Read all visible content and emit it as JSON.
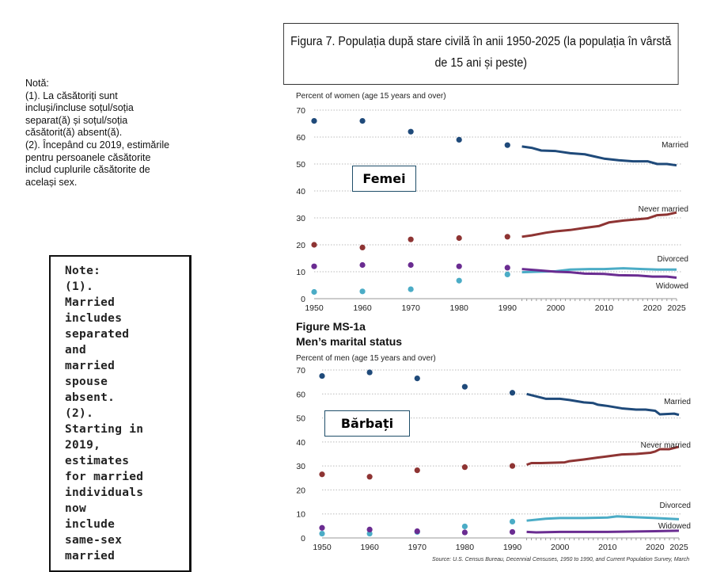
{
  "note_ro": {
    "text": "Notă:\n(1). La  căsătoriți sunt\nincluși/incluse soțul/soția\nseparat(ă) și soțul/soția\ncăsătorit(ă) absent(ă).\n(2). Începând cu 2019, estimările\npentru persoanele căsătorite\ninclud cuplurile căsătorite de\nacelași sex."
  },
  "note_en": {
    "text": "Note:\n(1).\nMarried\nincludes\nseparated\nand\nmarried\nspouse\nabsent.\n(2).\nStarting in\n2019,\nestimates\nfor married\nindividuals\nnow\ninclude\nsame-sex\nmarried"
  },
  "title": "Figura 7. Populația după stare civilă în anii 1950-2025 (la populația în vârstă de 15 ani și peste)",
  "figure_label": {
    "line1": "Figure MS-1a",
    "line2": "Men’s marital status"
  },
  "source": "Source: U.S. Census Bureau, Decennial Censuses, 1950 to 1990, and Current Population Survey, March",
  "colors": {
    "married": "#1f4a7a",
    "never_married": "#8e3433",
    "divorced": "#4bacc6",
    "widowed": "#6a2c91"
  },
  "chart_data": [
    {
      "type": "line",
      "title": "Femei",
      "ylabel": "Percent of women (age 15 years and over)",
      "xlim": [
        1950,
        2025
      ],
      "ylim": [
        0,
        70
      ],
      "yticks": [
        0,
        10,
        20,
        30,
        40,
        50,
        60,
        70
      ],
      "xticks": [
        1950,
        1960,
        1970,
        1980,
        1990,
        2000,
        2010,
        2020,
        2025
      ],
      "grid": true,
      "series": [
        {
          "key": "married",
          "name": "Married",
          "points": [
            [
              1950,
              66
            ],
            [
              1960,
              66
            ],
            [
              1970,
              62
            ],
            [
              1980,
              59
            ],
            [
              1990,
              57
            ]
          ],
          "line": [
            [
              1993,
              56.5
            ],
            [
              1995,
              56
            ],
            [
              1997,
              55
            ],
            [
              2000,
              54.8
            ],
            [
              2003,
              54
            ],
            [
              2006,
              53.6
            ],
            [
              2008,
              52.8
            ],
            [
              2010,
              52
            ],
            [
              2013,
              51.4
            ],
            [
              2016,
              51
            ],
            [
              2019,
              51
            ],
            [
              2021,
              50
            ],
            [
              2023,
              50
            ],
            [
              2025,
              49.5
            ]
          ]
        },
        {
          "key": "never_married",
          "name": "Never married",
          "points": [
            [
              1950,
              20
            ],
            [
              1960,
              19
            ],
            [
              1970,
              22
            ],
            [
              1980,
              22.5
            ],
            [
              1990,
              23
            ]
          ],
          "line": [
            [
              1993,
              23
            ],
            [
              1995,
              23.5
            ],
            [
              1998,
              24.5
            ],
            [
              2000,
              25
            ],
            [
              2003,
              25.5
            ],
            [
              2006,
              26.3
            ],
            [
              2009,
              27
            ],
            [
              2011,
              28.3
            ],
            [
              2014,
              29
            ],
            [
              2017,
              29.5
            ],
            [
              2019,
              29.8
            ],
            [
              2021,
              31
            ],
            [
              2023,
              31.2
            ],
            [
              2025,
              32
            ]
          ]
        },
        {
          "key": "divorced",
          "name": "Divorced",
          "points": [
            [
              1950,
              2.5
            ],
            [
              1960,
              2.7
            ],
            [
              1970,
              3.5
            ],
            [
              1980,
              6.7
            ],
            [
              1990,
              9
            ]
          ],
          "line": [
            [
              1993,
              9.8
            ],
            [
              1996,
              10
            ],
            [
              2000,
              10.2
            ],
            [
              2003,
              10.8
            ],
            [
              2007,
              11
            ],
            [
              2010,
              11
            ],
            [
              2014,
              11.3
            ],
            [
              2018,
              11
            ],
            [
              2021,
              10.8
            ],
            [
              2025,
              10.8
            ]
          ]
        },
        {
          "key": "widowed",
          "name": "Widowed",
          "points": [
            [
              1950,
              12
            ],
            [
              1960,
              12.5
            ],
            [
              1970,
              12.5
            ],
            [
              1980,
              12
            ],
            [
              1990,
              11.5
            ]
          ],
          "line": [
            [
              1993,
              11
            ],
            [
              1996,
              10.6
            ],
            [
              2000,
              10
            ],
            [
              2003,
              9.8
            ],
            [
              2006,
              9.3
            ],
            [
              2010,
              9.2
            ],
            [
              2013,
              8.7
            ],
            [
              2017,
              8.6
            ],
            [
              2020,
              8.2
            ],
            [
              2023,
              8.2
            ],
            [
              2025,
              7.8
            ]
          ]
        }
      ]
    },
    {
      "type": "line",
      "title": "Bărbați",
      "ylabel": "Percent of men (age 15 years and over)",
      "xlim": [
        1950,
        2025
      ],
      "ylim": [
        0,
        70
      ],
      "yticks": [
        0,
        10,
        20,
        30,
        40,
        50,
        60,
        70
      ],
      "xticks": [
        1950,
        1960,
        1970,
        1980,
        1990,
        2000,
        2010,
        2020,
        2025
      ],
      "grid": true,
      "series": [
        {
          "key": "married",
          "name": "Married",
          "points": [
            [
              1950,
              67.5
            ],
            [
              1960,
              69
            ],
            [
              1970,
              66.5
            ],
            [
              1980,
              63
            ],
            [
              1990,
              60.5
            ]
          ],
          "line": [
            [
              1993,
              60
            ],
            [
              1995,
              59
            ],
            [
              1997,
              58
            ],
            [
              2000,
              58
            ],
            [
              2002,
              57.5
            ],
            [
              2005,
              56.5
            ],
            [
              2007,
              56.2
            ],
            [
              2008,
              55.5
            ],
            [
              2010,
              55
            ],
            [
              2013,
              54
            ],
            [
              2016,
              53.5
            ],
            [
              2018,
              53.5
            ],
            [
              2020,
              53
            ],
            [
              2021,
              51.5
            ],
            [
              2024,
              51.8
            ],
            [
              2025,
              51.3
            ]
          ]
        },
        {
          "key": "never_married",
          "name": "Never married",
          "points": [
            [
              1950,
              26.5
            ],
            [
              1960,
              25.5
            ],
            [
              1970,
              28.2
            ],
            [
              1980,
              29.5
            ],
            [
              1990,
              30
            ]
          ],
          "line": [
            [
              1993,
              30.5
            ],
            [
              1994,
              31.2
            ],
            [
              1996,
              31.2
            ],
            [
              2001,
              31.5
            ],
            [
              2002,
              32
            ],
            [
              2005,
              32.7
            ],
            [
              2008,
              33.5
            ],
            [
              2010,
              34
            ],
            [
              2013,
              34.8
            ],
            [
              2016,
              35
            ],
            [
              2019,
              35.5
            ],
            [
              2020,
              36
            ],
            [
              2021,
              37
            ],
            [
              2023,
              37
            ],
            [
              2025,
              38
            ]
          ]
        },
        {
          "key": "divorced",
          "name": "Divorced",
          "points": [
            [
              1950,
              1.8
            ],
            [
              1960,
              1.8
            ],
            [
              1970,
              2.5
            ],
            [
              1980,
              4.8
            ],
            [
              1990,
              6.8
            ]
          ],
          "line": [
            [
              1993,
              7.2
            ],
            [
              1997,
              8
            ],
            [
              2000,
              8.3
            ],
            [
              2005,
              8.3
            ],
            [
              2010,
              8.5
            ],
            [
              2012,
              9
            ],
            [
              2015,
              8.7
            ],
            [
              2020,
              8.3
            ],
            [
              2025,
              7.8
            ]
          ]
        },
        {
          "key": "widowed",
          "name": "Widowed",
          "points": [
            [
              1950,
              4.2
            ],
            [
              1960,
              3.5
            ],
            [
              1970,
              2.8
            ],
            [
              1980,
              2.3
            ],
            [
              1990,
              2.5
            ]
          ],
          "line": [
            [
              1993,
              2.5
            ],
            [
              1995,
              2.3
            ],
            [
              2000,
              2.5
            ],
            [
              2010,
              2.5
            ],
            [
              2020,
              2.8
            ],
            [
              2025,
              3
            ]
          ]
        }
      ]
    }
  ]
}
